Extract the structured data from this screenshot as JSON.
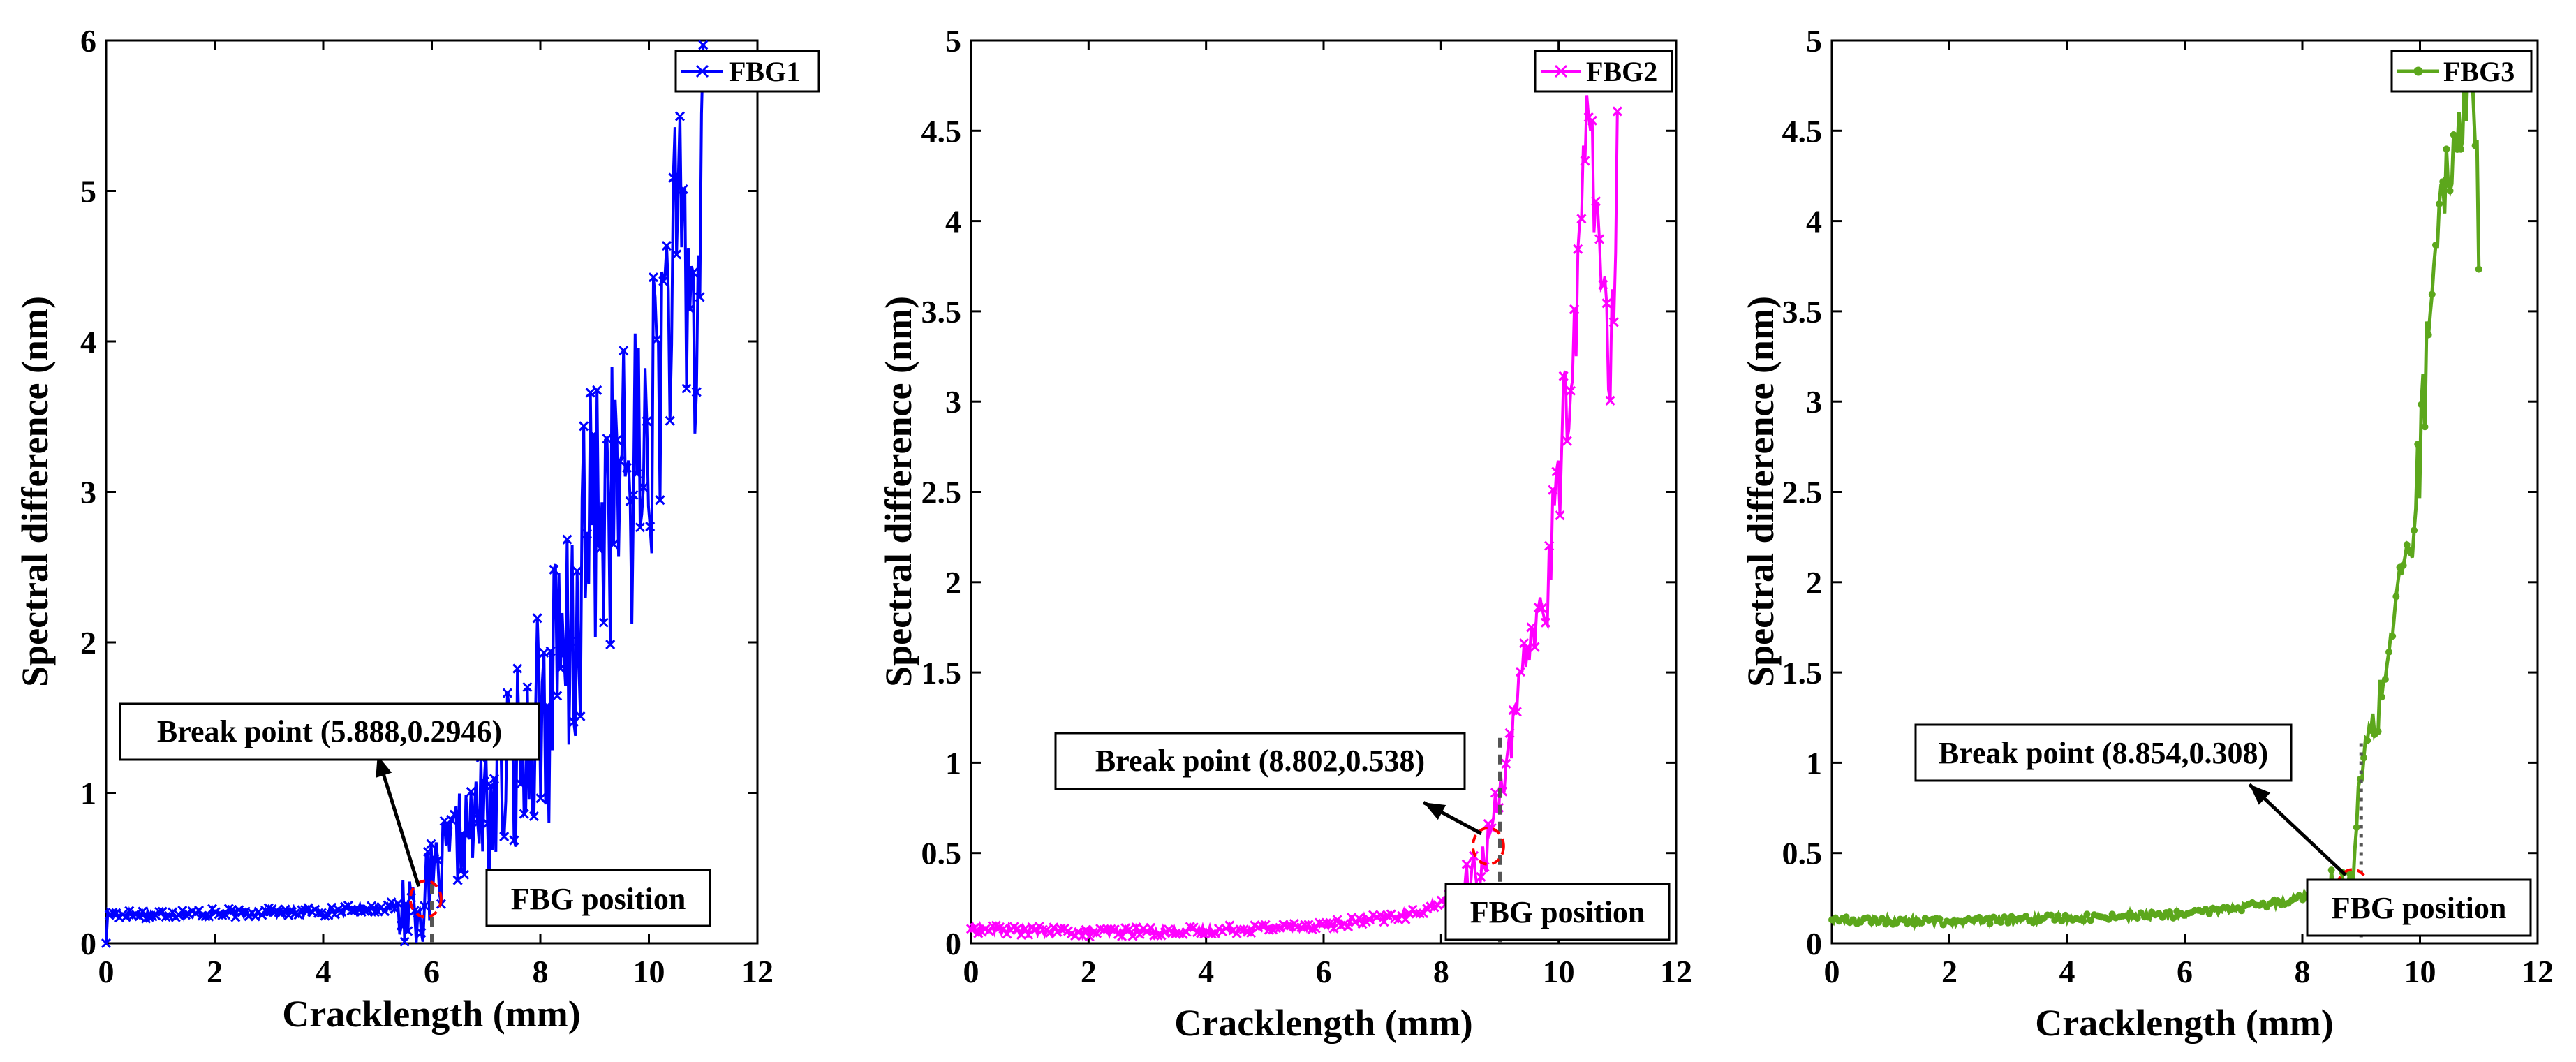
{
  "figure": "Three FBG spectral-difference plots",
  "chart_data": [
    {
      "type": "line",
      "series_name": "FBG1",
      "color": "#0000ff",
      "marker": "x",
      "xlabel": "Cracklength (mm)",
      "ylabel": "Spectral difference (nm)",
      "xlim": [
        0,
        12
      ],
      "ylim": [
        0,
        6
      ],
      "xticks": [
        "0",
        "2",
        "4",
        "6",
        "8",
        "10",
        "12"
      ],
      "yticks": [
        "0",
        "1",
        "2",
        "3",
        "4",
        "5",
        "6"
      ],
      "break_point": {
        "label": "Break point (5.888,0.2946)",
        "x": 5.888,
        "y": 0.2946
      },
      "fbg_position": {
        "label": "FBG position",
        "x": 6.0
      },
      "key_points": [
        [
          0,
          0.19
        ],
        [
          2,
          0.2
        ],
        [
          4,
          0.21
        ],
        [
          5.5,
          0.25
        ],
        [
          5.888,
          0.2946
        ],
        [
          6.5,
          0.7
        ],
        [
          7,
          0.85
        ],
        [
          7.5,
          1.2
        ],
        [
          8,
          1.5
        ],
        [
          8.5,
          1.8
        ],
        [
          9,
          2.9
        ],
        [
          9.5,
          3.0
        ],
        [
          10,
          3.3
        ],
        [
          10.3,
          4.2
        ],
        [
          10.6,
          4.6
        ],
        [
          10.9,
          4.0
        ],
        [
          11.0,
          5.95
        ]
      ],
      "noise_amp": [
        0.03,
        0.3,
        0.6,
        1.0
      ]
    },
    {
      "type": "line",
      "series_name": "FBG2",
      "color": "#ff00ff",
      "marker": "x",
      "xlabel": "Cracklength (mm)",
      "ylabel": "Spectral difference (nm)",
      "xlim": [
        0,
        12
      ],
      "ylim": [
        0,
        5
      ],
      "xticks": [
        "0",
        "2",
        "4",
        "6",
        "8",
        "10",
        "12"
      ],
      "yticks": [
        "0",
        "0.5",
        "1",
        "1.5",
        "2",
        "2.5",
        "3",
        "3.5",
        "4",
        "4.5",
        "5"
      ],
      "break_point": {
        "label": "Break point (8.802,0.538)",
        "x": 8.802,
        "y": 0.538
      },
      "fbg_position": {
        "label": "FBG position",
        "x": 9.0
      },
      "key_points": [
        [
          0,
          0.08
        ],
        [
          2,
          0.06
        ],
        [
          4,
          0.07
        ],
        [
          6,
          0.1
        ],
        [
          7.5,
          0.16
        ],
        [
          8.5,
          0.3
        ],
        [
          8.802,
          0.538
        ],
        [
          9.0,
          0.9
        ],
        [
          9.2,
          1.1
        ],
        [
          9.5,
          1.7
        ],
        [
          9.8,
          1.9
        ],
        [
          10.0,
          2.6
        ],
        [
          10.3,
          3.5
        ],
        [
          10.5,
          4.7
        ],
        [
          10.7,
          3.8
        ],
        [
          10.9,
          3.0
        ],
        [
          11.0,
          4.6
        ]
      ],
      "noise_amp": [
        0.025,
        0.15,
        0.3,
        0.5
      ]
    },
    {
      "type": "line",
      "series_name": "FBG3",
      "color": "#5ca71c",
      "marker": "o",
      "xlabel": "Cracklength (mm)",
      "ylabel": "Spectral difference (nm)",
      "xlim": [
        0,
        12
      ],
      "ylim": [
        0,
        5
      ],
      "xticks": [
        "0",
        "2",
        "4",
        "6",
        "8",
        "10",
        "12"
      ],
      "yticks": [
        "0",
        "0.5",
        "1",
        "1.5",
        "2",
        "2.5",
        "3",
        "3.5",
        "4",
        "4.5",
        "5"
      ],
      "break_point": {
        "label": "Break point (8.854,0.308)",
        "x": 8.854,
        "y": 0.308
      },
      "fbg_position": {
        "label": "FBG position",
        "x": 9.0
      },
      "key_points": [
        [
          0,
          0.13
        ],
        [
          2,
          0.12
        ],
        [
          4,
          0.14
        ],
        [
          6,
          0.16
        ],
        [
          7.5,
          0.22
        ],
        [
          8.5,
          0.3
        ],
        [
          8.854,
          0.308
        ],
        [
          9.0,
          1.0
        ],
        [
          9.3,
          1.3
        ],
        [
          9.6,
          1.9
        ],
        [
          9.9,
          2.3
        ],
        [
          10.2,
          3.6
        ],
        [
          10.5,
          4.3
        ],
        [
          10.7,
          4.6
        ],
        [
          10.9,
          4.9
        ],
        [
          11.0,
          3.9
        ]
      ],
      "noise_amp": [
        0.02,
        0.12,
        0.25,
        0.35
      ]
    }
  ]
}
